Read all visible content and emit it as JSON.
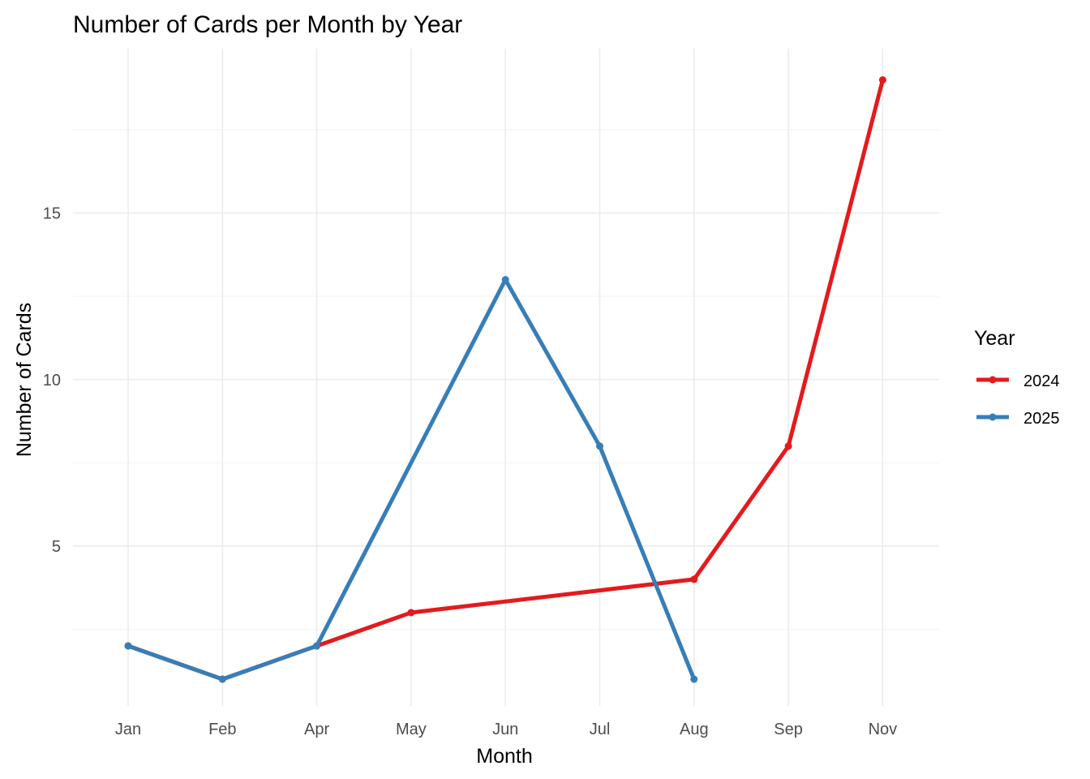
{
  "chart_data": {
    "type": "line",
    "title": "Number of Cards per Month by Year",
    "xlabel": "Month",
    "ylabel": "Number of Cards",
    "categories": [
      "Jan",
      "Feb",
      "Apr",
      "May",
      "Jun",
      "Jul",
      "Aug",
      "Sep",
      "Nov"
    ],
    "yticks": [
      5,
      10,
      15
    ],
    "ylim": [
      0.6,
      20.1
    ],
    "grid": true,
    "legend": {
      "title": "Year",
      "placement": "right"
    },
    "series": [
      {
        "name": "2024",
        "color": "#e41a1c",
        "points": [
          {
            "x": "Jan",
            "y": 2
          },
          {
            "x": "Feb",
            "y": 1
          },
          {
            "x": "Apr",
            "y": 2
          },
          {
            "x": "May",
            "y": 3
          },
          {
            "x": "Aug",
            "y": 4
          },
          {
            "x": "Sep",
            "y": 8
          },
          {
            "x": "Nov",
            "y": 19
          }
        ]
      },
      {
        "name": "2025",
        "color": "#377eb8",
        "points": [
          {
            "x": "Jan",
            "y": 2
          },
          {
            "x": "Feb",
            "y": 1
          },
          {
            "x": "Apr",
            "y": 2
          },
          {
            "x": "Jun",
            "y": 13
          },
          {
            "x": "Jul",
            "y": 8
          },
          {
            "x": "Aug",
            "y": 1
          }
        ]
      }
    ]
  }
}
